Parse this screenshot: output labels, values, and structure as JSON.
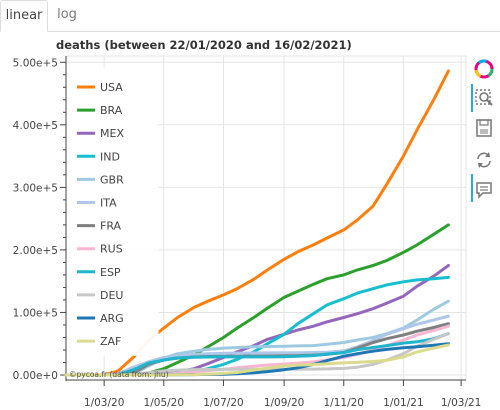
{
  "tabs": [
    {
      "label": "linear",
      "active": true
    },
    {
      "label": "log",
      "active": false
    }
  ],
  "chart_data": {
    "type": "line",
    "title": "deaths (between 22/01/2020 and 16/02/2021)",
    "xlabel": "",
    "ylabel": "",
    "x_ticks": [
      "1/03/20",
      "1/05/20",
      "1/07/20",
      "1/09/20",
      "1/11/20",
      "1/01/21",
      "1/03/21"
    ],
    "y_ticks": [
      "0.00e+0",
      "1.00e+5",
      "2.00e+5",
      "3.00e+5",
      "4.00e+5",
      "5.00e+5"
    ],
    "xlim": [
      "2020-01-22",
      "2021-03-06"
    ],
    "ylim": [
      -8000,
      510000
    ],
    "grid": true,
    "legend_position": "top-left",
    "watermark": "©pycoa.fr (data from: jhu)",
    "x": [
      "2020-01-22",
      "2020-03-01",
      "2020-03-15",
      "2020-04-01",
      "2020-04-15",
      "2020-05-01",
      "2020-05-15",
      "2020-06-01",
      "2020-06-15",
      "2020-07-01",
      "2020-07-15",
      "2020-08-01",
      "2020-08-15",
      "2020-09-01",
      "2020-09-15",
      "2020-10-01",
      "2020-10-15",
      "2020-11-01",
      "2020-11-15",
      "2020-12-01",
      "2020-12-15",
      "2021-01-01",
      "2021-01-15",
      "2021-02-01",
      "2021-02-16"
    ],
    "series": [
      {
        "name": "USA",
        "color": "#ff7f0e",
        "values": [
          0,
          500,
          6000,
          30000,
          55000,
          75000,
          92000,
          108000,
          118000,
          128000,
          138000,
          153000,
          168000,
          185000,
          197000,
          208000,
          219000,
          232000,
          248000,
          270000,
          305000,
          350000,
          392000,
          440000,
          486000
        ]
      },
      {
        "name": "BRA",
        "color": "#2ca02c",
        "values": [
          0,
          0,
          0,
          500,
          3000,
          10000,
          20000,
          32000,
          45000,
          60000,
          75000,
          92000,
          107000,
          124000,
          134000,
          145000,
          154000,
          160000,
          168000,
          175000,
          183000,
          196000,
          208000,
          225000,
          240000
        ]
      },
      {
        "name": "MEX",
        "color": "#9467bd",
        "values": [
          0,
          0,
          0,
          0,
          800,
          2000,
          5000,
          10000,
          18000,
          28000,
          37000,
          47000,
          57000,
          65000,
          72000,
          78000,
          85000,
          92000,
          98000,
          106000,
          115000,
          126000,
          142000,
          158000,
          175000
        ]
      },
      {
        "name": "IND",
        "color": "#17becf",
        "values": [
          0,
          0,
          0,
          0,
          400,
          1500,
          3000,
          5500,
          10000,
          17000,
          25000,
          37000,
          50000,
          65000,
          82000,
          98000,
          112000,
          122000,
          131000,
          138000,
          144000,
          149000,
          152000,
          154000,
          156000
        ]
      },
      {
        "name": "GBR",
        "color": "#9ecae1",
        "values": [
          0,
          0,
          100,
          2500,
          14000,
          27000,
          34000,
          38000,
          41000,
          43000,
          44000,
          45000,
          45500,
          46000,
          46500,
          47000,
          49000,
          52000,
          56000,
          60000,
          66000,
          75000,
          88000,
          105000,
          118000
        ]
      },
      {
        "name": "ITA",
        "color": "#aec7e8",
        "values": [
          0,
          30,
          1800,
          13000,
          21000,
          28000,
          31000,
          33000,
          34000,
          34500,
          35000,
          35200,
          35300,
          35500,
          35700,
          36000,
          36500,
          38500,
          45000,
          55000,
          65000,
          74000,
          81000,
          88000,
          94000
        ]
      },
      {
        "name": "FRA",
        "color": "#7f7f7f",
        "values": [
          0,
          2,
          100,
          4000,
          17000,
          24000,
          27000,
          28800,
          29500,
          29800,
          30000,
          30200,
          30400,
          30700,
          31000,
          31800,
          33000,
          36000,
          43000,
          52000,
          58000,
          64000,
          70000,
          76000,
          82000
        ]
      },
      {
        "name": "RUS",
        "color": "#f7b6d2",
        "values": [
          0,
          0,
          0,
          20,
          170,
          1100,
          2500,
          4800,
          7000,
          9200,
          11500,
          14000,
          16000,
          17500,
          19000,
          21000,
          24000,
          28000,
          33000,
          40000,
          47000,
          56000,
          64000,
          71000,
          78000
        ]
      },
      {
        "name": "ESP",
        "color": "#1fb5cf",
        "values": [
          0,
          0,
          300,
          9000,
          19000,
          24000,
          27300,
          28500,
          28800,
          28900,
          28900,
          28950,
          29000,
          29100,
          30000,
          31000,
          33500,
          35800,
          40500,
          44000,
          47000,
          51000,
          53000,
          58000,
          66000
        ]
      },
      {
        "name": "DEU",
        "color": "#c7c7c7",
        "values": [
          0,
          0,
          10,
          900,
          3500,
          6600,
          7900,
          8600,
          8800,
          9000,
          9100,
          9150,
          9200,
          9300,
          9350,
          9500,
          9700,
          10500,
          12500,
          17000,
          24000,
          34000,
          46000,
          57000,
          66000
        ]
      },
      {
        "name": "ARG",
        "color": "#1f77b4",
        "values": [
          0,
          0,
          0,
          20,
          100,
          250,
          400,
          600,
          900,
          1300,
          1900,
          3500,
          5500,
          8500,
          11500,
          17000,
          23000,
          30000,
          34000,
          38000,
          41000,
          43500,
          45000,
          47500,
          50000
        ]
      },
      {
        "name": "ZAF",
        "color": "#dbdb8d",
        "values": [
          0,
          0,
          0,
          2,
          30,
          100,
          300,
          700,
          1500,
          2500,
          4000,
          8000,
          11000,
          14500,
          15800,
          16700,
          18000,
          19300,
          20300,
          21500,
          23500,
          29000,
          37000,
          43000,
          48000
        ]
      }
    ]
  }
}
